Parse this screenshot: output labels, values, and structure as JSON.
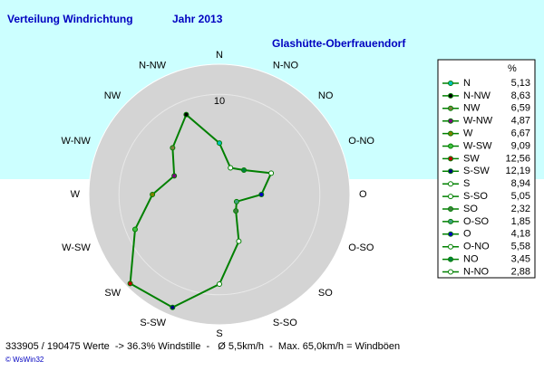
{
  "chart_data": {
    "type": "radar",
    "title": "Verteilung Windrichtung",
    "subtitle": "Jahr 2013",
    "station": "Glashütte-Oberfrauendorf",
    "direction": "counterclockwise",
    "categories": [
      "N",
      "N-NW",
      "NW",
      "W-NW",
      "W",
      "W-SW",
      "SW",
      "S-SW",
      "S",
      "S-SO",
      "SO",
      "O-SO",
      "O",
      "O-NO",
      "NO",
      "N-NO"
    ],
    "values": [
      5.13,
      8.63,
      6.59,
      4.87,
      6.67,
      9.09,
      12.56,
      12.19,
      8.94,
      5.05,
      2.32,
      1.85,
      4.18,
      5.58,
      3.45,
      2.88
    ],
    "value_labels": [
      "5,13",
      "8,63",
      "6,59",
      "4,87",
      "6,67",
      "9,09",
      "12,56",
      "12,19",
      "8,94",
      "5,05",
      "2,32",
      "1,85",
      "4,18",
      "5,58",
      "3,45",
      "2,88"
    ],
    "marker_colors": [
      "#00c0c0",
      "#000000",
      "#808040",
      "#800080",
      "#808000",
      "#40c040",
      "#c00000",
      "#000080",
      "#ffffff",
      "#ffffff",
      "#408040",
      "#40a080",
      "#0000c0",
      "#ffffff",
      "#008040",
      "#ffffff"
    ],
    "color": "#008000",
    "rlim": [
      0,
      13
    ],
    "rticks": [
      10
    ],
    "legend_title": "%",
    "footer": "333905 / 190475 Werte  -> 36.3% Windstille  -   Ø 5,5km/h  -  Max. 65,0km/h = Windböen",
    "credit": "© WsWin32"
  }
}
